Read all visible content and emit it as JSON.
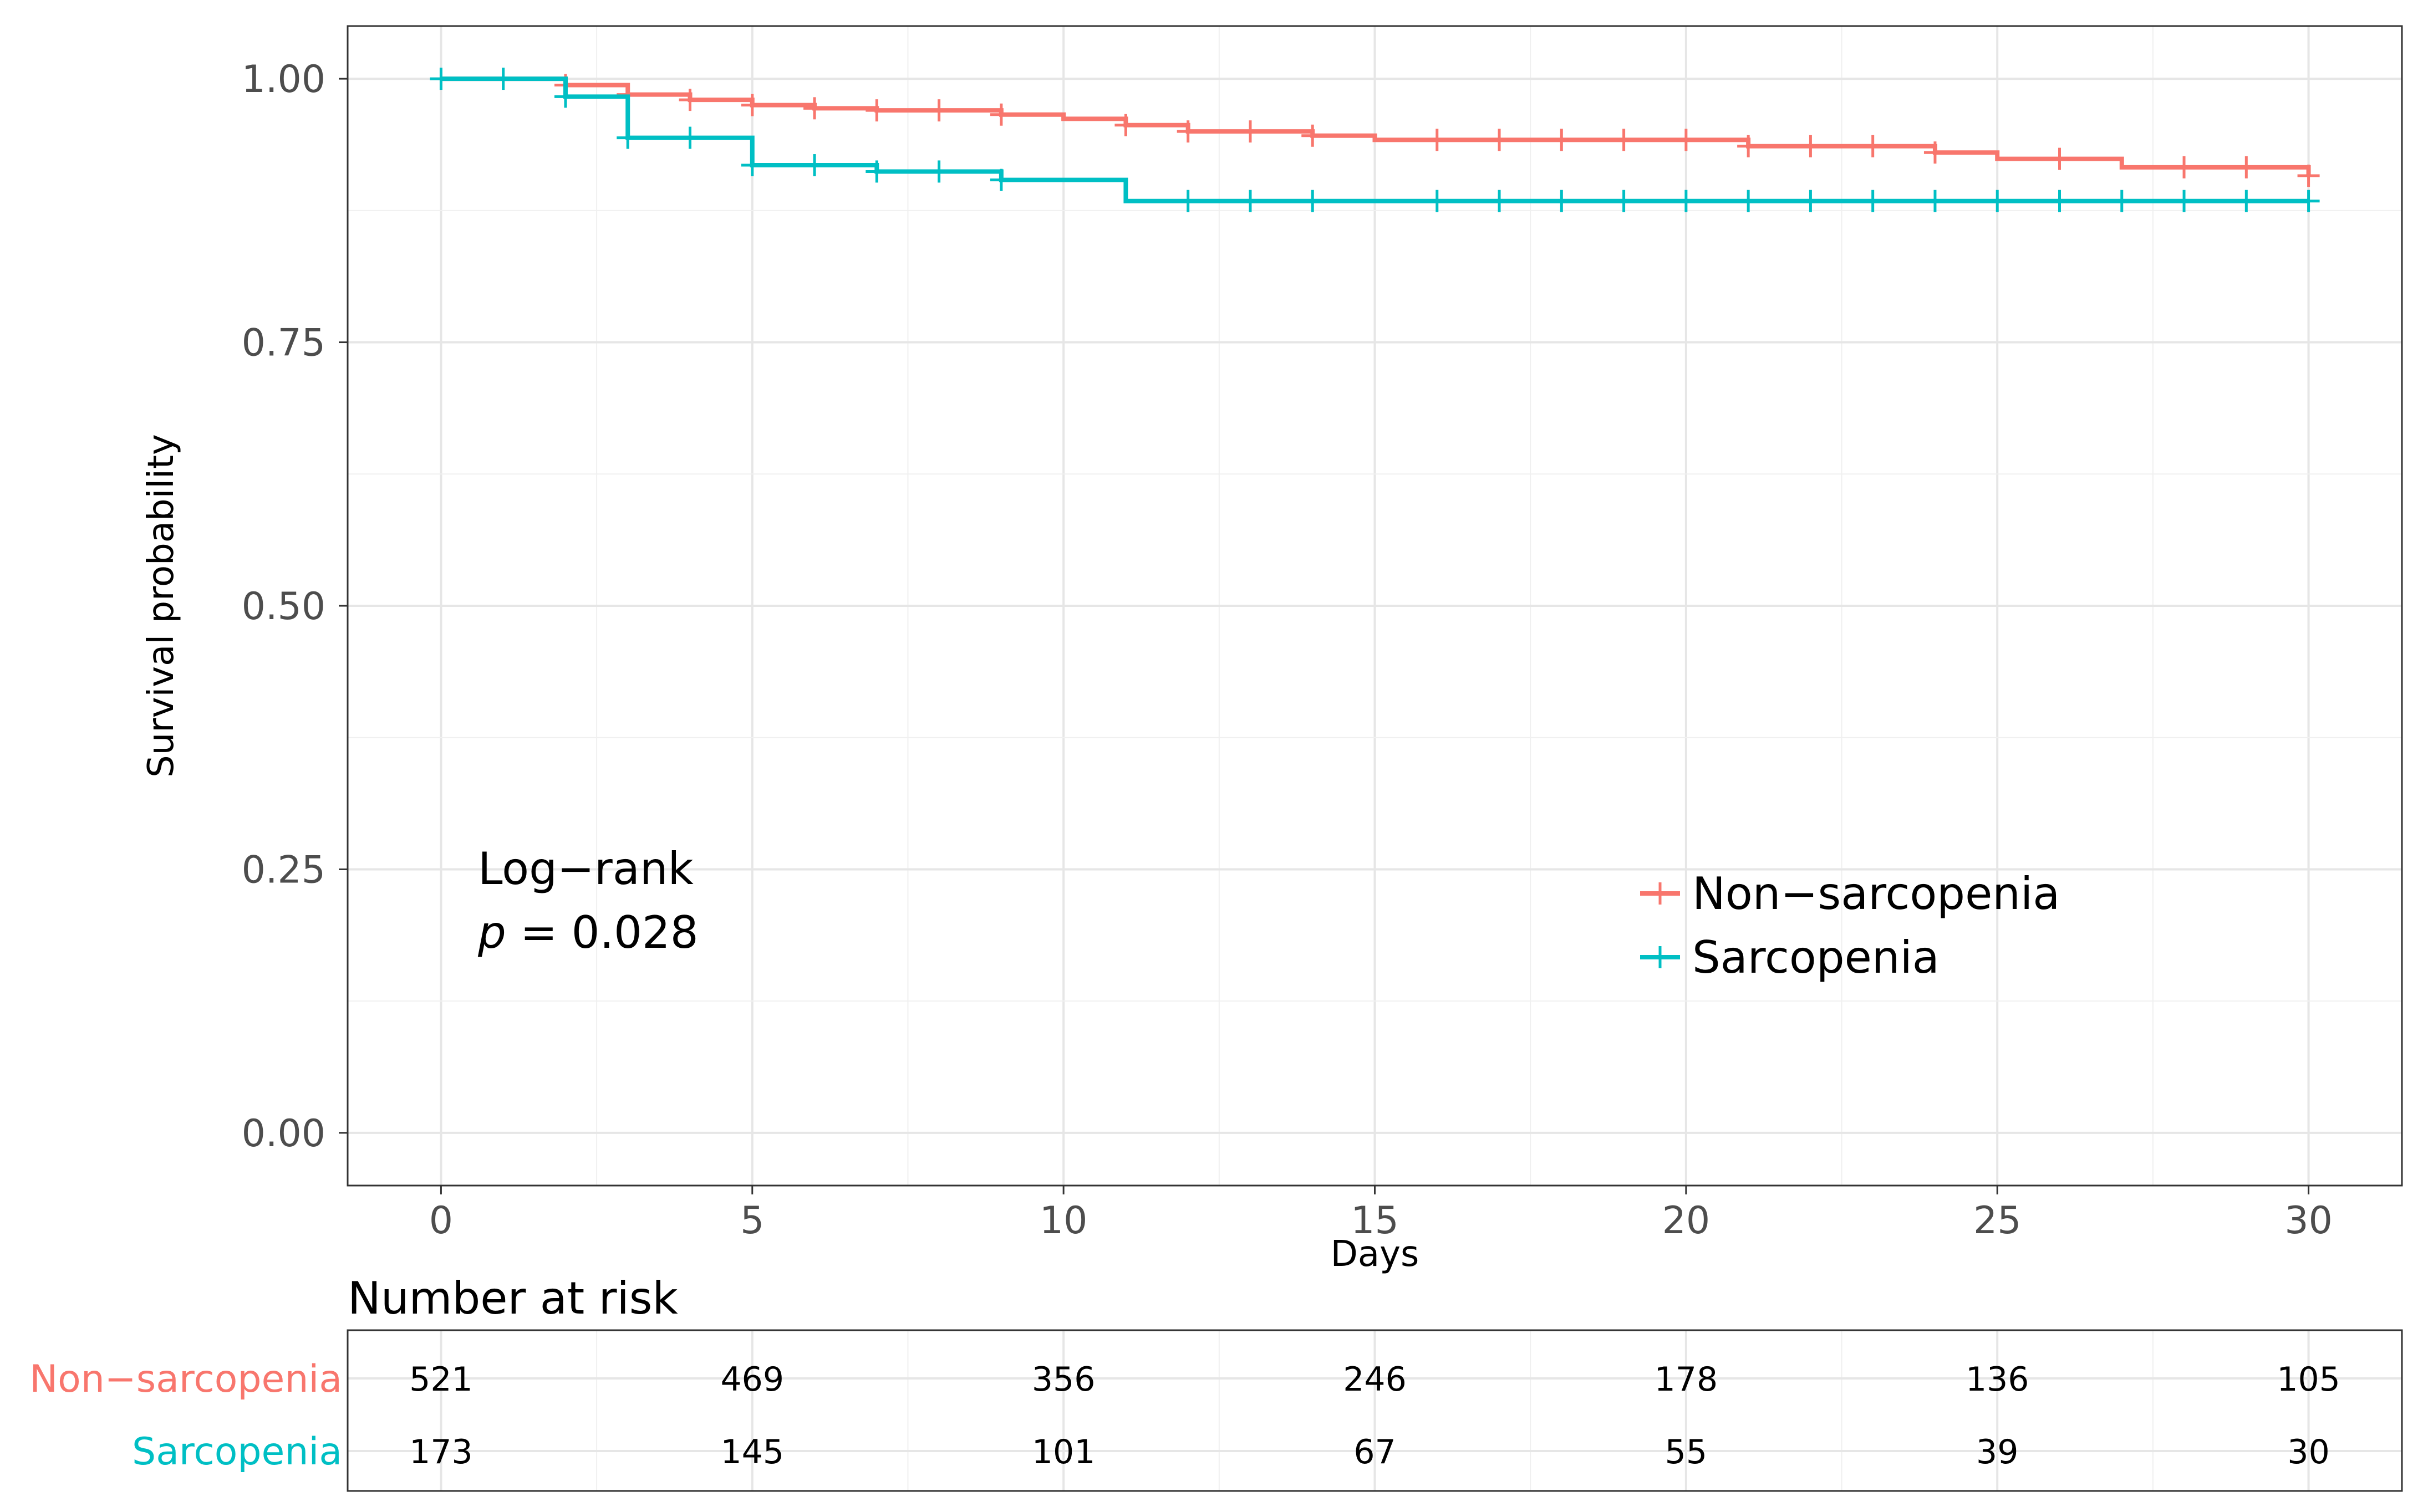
{
  "chart_data": {
    "type": "line",
    "subtype": "kaplan-meier",
    "title": "",
    "xlabel": "Days",
    "ylabel": "Survival probability",
    "xlim": [
      -1.5,
      31.5
    ],
    "ylim": [
      -0.05,
      1.05
    ],
    "x_ticks": [
      0,
      5,
      10,
      15,
      20,
      25,
      30
    ],
    "x_tick_labels": [
      "0",
      "5",
      "10",
      "15",
      "20",
      "25",
      "30"
    ],
    "y_ticks": [
      0.0,
      0.25,
      0.5,
      0.75,
      1.0
    ],
    "y_tick_labels": [
      "0.00",
      "0.25",
      "0.50",
      "0.75",
      "1.00"
    ],
    "grid": true,
    "legend_position": "bottom-right inside",
    "series": [
      {
        "name": "Non−sarcopenia",
        "color": "#F8766D",
        "steps": [
          [
            0,
            1.0
          ],
          [
            2,
            0.994
          ],
          [
            3,
            0.985
          ],
          [
            4,
            0.98
          ],
          [
            5,
            0.975
          ],
          [
            6,
            0.972
          ],
          [
            7,
            0.97
          ],
          [
            9,
            0.966
          ],
          [
            10,
            0.962
          ],
          [
            11,
            0.956
          ],
          [
            12,
            0.95
          ],
          [
            14,
            0.946
          ],
          [
            15,
            0.942
          ],
          [
            21,
            0.936
          ],
          [
            24,
            0.93
          ],
          [
            25,
            0.924
          ],
          [
            27,
            0.916
          ],
          [
            30,
            0.908
          ]
        ],
        "censor_times": [
          2,
          3,
          4,
          5,
          6,
          7,
          8,
          9,
          11,
          12,
          13,
          14,
          16,
          17,
          18,
          19,
          20,
          21,
          22,
          23,
          24,
          26,
          28,
          29,
          30
        ]
      },
      {
        "name": "Sarcopenia",
        "color": "#00BFC4",
        "steps": [
          [
            0,
            1.0
          ],
          [
            2,
            0.983
          ],
          [
            3,
            0.944
          ],
          [
            5,
            0.918
          ],
          [
            7,
            0.912
          ],
          [
            9,
            0.904
          ],
          [
            11,
            0.884
          ]
        ],
        "censor_times": [
          0,
          1,
          2,
          3,
          4,
          5,
          6,
          7,
          8,
          9,
          12,
          13,
          14,
          16,
          17,
          18,
          19,
          20,
          21,
          22,
          23,
          24,
          25,
          26,
          27,
          28,
          29,
          30
        ]
      }
    ],
    "annotation": {
      "line1": "Log−rank",
      "p_symbol": "p",
      "p_rest": " = 0.028"
    },
    "risk_table": {
      "title": "Number at risk",
      "times": [
        0,
        5,
        10,
        15,
        20,
        25,
        30
      ],
      "rows": [
        {
          "name": "Non−sarcopenia",
          "color": "#F8766D",
          "values": [
            "521",
            "469",
            "356",
            "246",
            "178",
            "136",
            "105"
          ]
        },
        {
          "name": "Sarcopenia",
          "color": "#00BFC4",
          "values": [
            "173",
            "145",
            "101",
            "67",
            "55",
            "39",
            "30"
          ]
        }
      ]
    }
  }
}
